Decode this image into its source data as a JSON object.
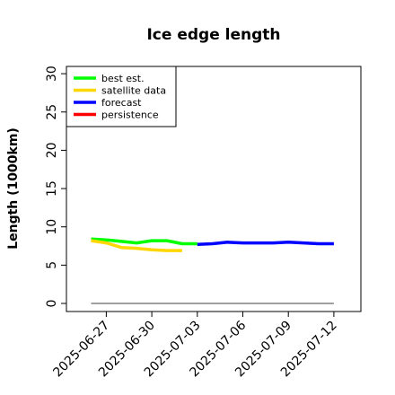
{
  "chart_data": {
    "type": "line",
    "title": "Ice edge length",
    "ylabel": "Length (1000km)",
    "xlabel": "",
    "ylim": [
      0,
      31
    ],
    "yticks": [
      0,
      5,
      10,
      15,
      20,
      25,
      30
    ],
    "xlim": [
      "2025-06-24",
      "2025-07-13"
    ],
    "xticks": [
      "2025-06-27",
      "2025-06-30",
      "2025-07-03",
      "2025-07-06",
      "2025-07-09",
      "2025-07-12"
    ],
    "highlight_tick": "2025-07-03",
    "highlight_color": "#228B22",
    "legend_position": "top-left",
    "grid": false,
    "series": [
      {
        "name": "best est.",
        "color": "#00ff00",
        "x": [
          "2025-06-26",
          "2025-06-27",
          "2025-06-28",
          "2025-06-29",
          "2025-06-30",
          "2025-07-01",
          "2025-07-02",
          "2025-07-03"
        ],
        "values": [
          8.4,
          8.3,
          8.1,
          7.9,
          8.2,
          8.2,
          7.8,
          7.8
        ]
      },
      {
        "name": "satellite data",
        "color": "#ffd700",
        "x": [
          "2025-06-26",
          "2025-06-27",
          "2025-06-28",
          "2025-06-29",
          "2025-06-30",
          "2025-07-01",
          "2025-07-02"
        ],
        "values": [
          8.2,
          7.9,
          7.3,
          7.2,
          7.0,
          6.9,
          6.9
        ]
      },
      {
        "name": "forecast",
        "color": "#0000ff",
        "x": [
          "2025-07-03",
          "2025-07-04",
          "2025-07-05",
          "2025-07-06",
          "2025-07-07",
          "2025-07-08",
          "2025-07-09",
          "2025-07-10",
          "2025-07-11",
          "2025-07-12"
        ],
        "values": [
          7.7,
          7.8,
          8.0,
          7.9,
          7.9,
          7.9,
          8.0,
          7.9,
          7.8,
          7.8
        ]
      },
      {
        "name": "persistence",
        "color": "#ff0000",
        "x": [],
        "values": []
      }
    ],
    "reference_line": {
      "color": "#808080",
      "value": 0,
      "from": "2025-06-26",
      "to": "2025-07-12"
    }
  }
}
